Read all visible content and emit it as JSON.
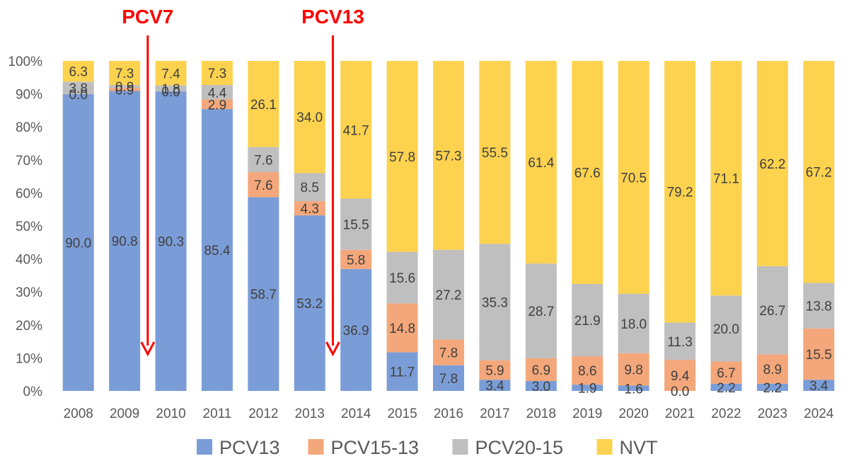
{
  "chart_data": {
    "type": "bar",
    "stacked": "percent",
    "categories": [
      "2008",
      "2009",
      "2010",
      "2011",
      "2012",
      "2013",
      "2014",
      "2015",
      "2016",
      "2017",
      "2018",
      "2019",
      "2020",
      "2021",
      "2022",
      "2023",
      "2024"
    ],
    "series": [
      {
        "name": "PCV13",
        "color": "#7b9dd7",
        "values": [
          90.0,
          90.8,
          90.3,
          85.4,
          58.7,
          53.2,
          36.9,
          11.7,
          7.8,
          3.4,
          3.0,
          1.9,
          1.6,
          0.0,
          2.2,
          2.2,
          3.4
        ]
      },
      {
        "name": "PCV15-13",
        "color": "#f4a77a",
        "values": [
          0.0,
          0.9,
          0.0,
          2.9,
          7.6,
          4.3,
          5.8,
          14.8,
          7.8,
          5.9,
          6.9,
          8.6,
          9.8,
          9.4,
          6.7,
          8.9,
          15.5
        ]
      },
      {
        "name": "PCV20-15",
        "color": "#bfbfbf",
        "values": [
          3.8,
          0.9,
          1.8,
          4.4,
          7.6,
          8.5,
          15.5,
          15.6,
          27.2,
          35.3,
          28.7,
          21.9,
          18.0,
          11.3,
          20.0,
          26.7,
          13.8
        ]
      },
      {
        "name": "NVT",
        "color": "#fdd24f",
        "values": [
          6.3,
          7.3,
          7.4,
          7.3,
          26.1,
          34.0,
          41.7,
          57.8,
          57.3,
          55.5,
          61.4,
          67.6,
          70.5,
          79.2,
          71.1,
          62.2,
          67.2
        ]
      }
    ],
    "data_labels": [
      [
        "90.0",
        "90.8",
        "90.3",
        "85.4",
        "58.7",
        "53.2",
        "36.9",
        "11.7",
        "7.8",
        "3.4",
        "3.0",
        "1.9",
        "1.6",
        "0.0",
        "2.2",
        "2.2",
        "3.4"
      ],
      [
        "0.0",
        "0.9",
        "0.0",
        "2.9",
        "7.6",
        "4.3",
        "5.8",
        "14.8",
        "7.8",
        "5.9",
        "6.9",
        "8.6",
        "9.8",
        "9.4",
        "6.7",
        "8.9",
        "15.5"
      ],
      [
        "3.8",
        "0.9",
        "1.8",
        "4.4",
        "7.6",
        "8.5",
        "15.5",
        "15.6",
        "27.2",
        "35.3",
        "28.7",
        "21.9",
        "18.0",
        "11.3",
        "20.0",
        "26.7",
        "13.8"
      ],
      [
        "6.3",
        "7.3",
        "7.4",
        "7.3",
        "26.1",
        "34.0",
        "41.7",
        "57.8",
        "57.3",
        "55.5",
        "61.4",
        "67.6",
        "70.5",
        "79.2",
        "71.1",
        "62.2",
        "67.2"
      ]
    ],
    "y_ticks": [
      "0%",
      "10%",
      "20%",
      "30%",
      "40%",
      "50%",
      "60%",
      "70%",
      "80%",
      "90%",
      "100%"
    ],
    "ylim": [
      0,
      100
    ],
    "grid": false,
    "legend_position": "bottom",
    "annotations": [
      {
        "text": "PCV7",
        "after_category": "2009",
        "color": "#ff0000"
      },
      {
        "text": "PCV13",
        "after_category": "2013",
        "color": "#ff0000"
      }
    ]
  }
}
